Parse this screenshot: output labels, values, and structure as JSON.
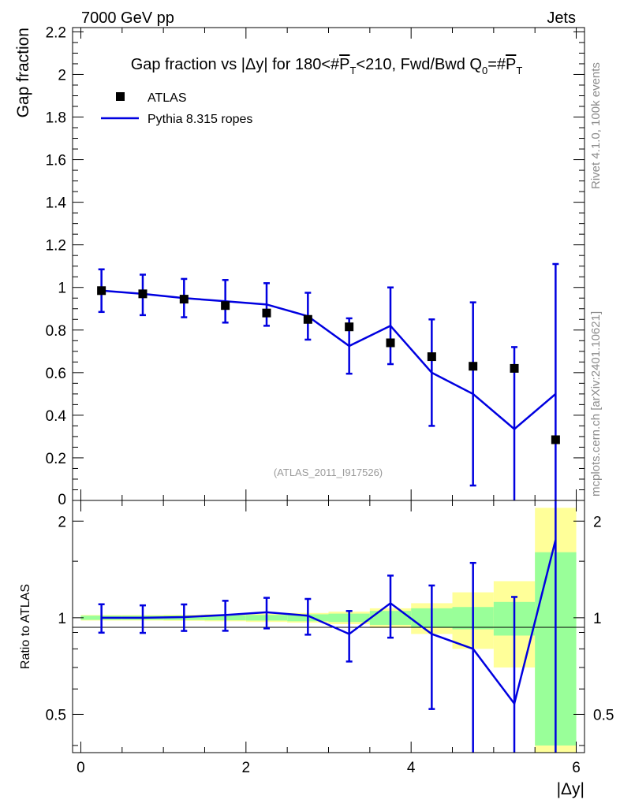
{
  "header": {
    "energy": "7000 GeV pp",
    "category": "Jets",
    "rivet_label": "Rivet 4.1.0,  100k events",
    "source_label": "mcplots.cern.ch [arXiv:2401.10621]"
  },
  "chart_data": {
    "type": "scatter",
    "title": "Gap fraction vs |Δy| for 180<#P̄T<210, Fwd/Bwd Q0=#P̄T",
    "title_parts": {
      "lead": "Gap fraction vs |",
      "delta": "Δ",
      "mid": "y| for 180<#",
      "pbar": "P",
      "t": "T",
      "mid2": "<210, Fwd/Bwd Q",
      "zero": "0",
      "eq": "=#"
    },
    "xlabel": "|Δy|",
    "ylabel": "Gap fraction",
    "ratio_ylabel": "Ratio to ATLAS",
    "analysis_label": "(ATLAS_2011_I917526)",
    "xlim": [
      -0.1,
      6.1
    ],
    "ylim": [
      0,
      2.22
    ],
    "ratio_ylim": [
      0.38,
      2.32
    ],
    "ratio_log": true,
    "x_ticks": [
      0,
      2,
      4,
      6
    ],
    "y_ticks": [
      0.2,
      0.4,
      0.6,
      0.8,
      1,
      1.2,
      1.4,
      1.6,
      1.8,
      2,
      2.2
    ],
    "y_tick_labels": [
      "0.2",
      "0.4",
      "0.6",
      "0.8",
      "1",
      "1.2",
      "1.4",
      "1.6",
      "1.8",
      "2",
      "2.2"
    ],
    "y_zero_label": "0",
    "ratio_ticks": [
      0.5,
      1,
      2
    ],
    "ratio_tick_labels": [
      "0.5",
      "1",
      "2"
    ],
    "bin_edges": [
      0,
      0.5,
      1,
      1.5,
      2,
      2.5,
      3,
      3.5,
      4,
      4.5,
      5,
      5.5,
      6
    ],
    "series": [
      {
        "name": "ATLAS",
        "kind": "data",
        "color": "#000000",
        "x": [
          0.25,
          0.75,
          1.25,
          1.75,
          2.25,
          2.75,
          3.25,
          3.75,
          4.25,
          4.75,
          5.25,
          5.75
        ],
        "values": [
          0.985,
          0.97,
          0.945,
          0.915,
          0.88,
          0.85,
          0.815,
          0.74,
          0.675,
          0.63,
          0.62,
          0.285
        ],
        "err_low": [
          0.018,
          0.018,
          0.02,
          0.022,
          0.025,
          0.028,
          0.03,
          0.04,
          0.05,
          0.06,
          0.07,
          0.1
        ],
        "err_high": [
          0.018,
          0.018,
          0.02,
          0.022,
          0.025,
          0.028,
          0.03,
          0.04,
          0.05,
          0.06,
          0.07,
          0.1
        ],
        "ratio_band_inner": [
          0.015,
          0.015,
          0.016,
          0.018,
          0.02,
          0.025,
          0.03,
          0.05,
          0.07,
          0.08,
          0.12,
          0.6
        ],
        "ratio_band_outer": [
          0.02,
          0.02,
          0.022,
          0.025,
          0.03,
          0.035,
          0.045,
          0.07,
          0.11,
          0.2,
          0.3,
          1.2
        ]
      },
      {
        "name": "Pythia 8.315 ropes",
        "kind": "mc",
        "color": "#0000e0",
        "x": [
          0.25,
          0.75,
          1.25,
          1.75,
          2.25,
          2.75,
          3.25,
          3.75,
          4.25,
          4.75,
          5.25,
          5.75
        ],
        "values": [
          0.985,
          0.97,
          0.95,
          0.935,
          0.92,
          0.865,
          0.725,
          0.82,
          0.6,
          0.5,
          0.335,
          0.5
        ],
        "err_low": [
          0.1,
          0.1,
          0.09,
          0.1,
          0.1,
          0.11,
          0.13,
          0.18,
          0.25,
          0.43,
          0.335,
          0.5
        ],
        "err_high": [
          0.1,
          0.09,
          0.09,
          0.1,
          0.1,
          0.11,
          0.13,
          0.18,
          0.25,
          0.43,
          0.385,
          0.61
        ],
        "ratio": [
          1.0,
          1.0,
          1.005,
          1.02,
          1.04,
          1.015,
          0.89,
          1.11,
          0.89,
          0.8,
          0.54,
          1.75
        ]
      }
    ]
  }
}
